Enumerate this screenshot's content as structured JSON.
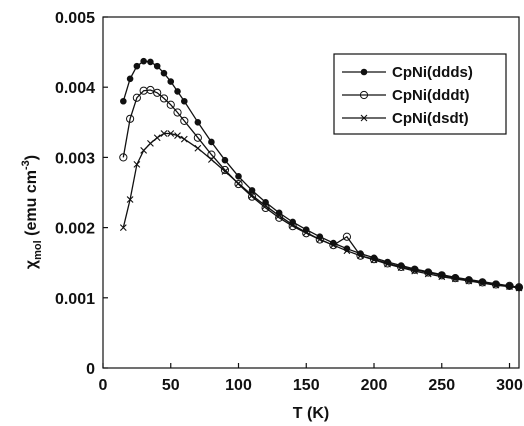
{
  "chart_data": {
    "type": "scatter",
    "xlabel": "T (K)",
    "ylabel": {
      "symbol": "χ",
      "sub": "mol",
      "text": " (emu cm",
      "sup": "-3",
      "close": ")"
    },
    "xlim": [
      0,
      307
    ],
    "ylim": [
      0,
      0.005
    ],
    "x_ticks": [
      "0",
      "50",
      "100",
      "150",
      "200",
      "250",
      "300"
    ],
    "y_ticks": [
      "0",
      "0.001",
      "0.002",
      "0.003",
      "0.004",
      "0.005"
    ],
    "grid": false,
    "legend_position": "top-right",
    "series": [
      {
        "name": "CpNi(ddds)",
        "marker": "filled-circle",
        "x": [
          15,
          20,
          25,
          30,
          35,
          40,
          45,
          50,
          55,
          60,
          70,
          80,
          90,
          100,
          110,
          120,
          130,
          140,
          150,
          160,
          170,
          180,
          190,
          200,
          210,
          220,
          230,
          240,
          250,
          260,
          270,
          280,
          290,
          300,
          307
        ],
        "y": [
          0.0038,
          0.00412,
          0.0043,
          0.00437,
          0.00436,
          0.0043,
          0.0042,
          0.00408,
          0.00394,
          0.0038,
          0.0035,
          0.00322,
          0.00296,
          0.00273,
          0.00253,
          0.00236,
          0.00221,
          0.00208,
          0.00197,
          0.00187,
          0.00178,
          0.0017,
          0.00163,
          0.00157,
          0.00151,
          0.00146,
          0.00141,
          0.00137,
          0.00133,
          0.00129,
          0.00126,
          0.00123,
          0.0012,
          0.00117,
          0.00115
        ]
      },
      {
        "name": "CpNi(dddt)",
        "marker": "open-circle",
        "x": [
          15,
          20,
          25,
          30,
          35,
          40,
          45,
          50,
          55,
          60,
          70,
          80,
          90,
          100,
          110,
          120,
          130,
          140,
          150,
          160,
          170,
          180,
          190,
          200,
          210,
          220,
          230,
          240,
          250,
          260,
          270,
          280,
          290,
          300,
          307
        ],
        "y": [
          0.003,
          0.00355,
          0.00385,
          0.00395,
          0.00396,
          0.00392,
          0.00384,
          0.00375,
          0.00364,
          0.00352,
          0.00328,
          0.00304,
          0.00282,
          0.00262,
          0.00244,
          0.00228,
          0.00214,
          0.00202,
          0.00192,
          0.00183,
          0.00175,
          0.00187,
          0.0016,
          0.00155,
          0.00149,
          0.00144,
          0.0014,
          0.00136,
          0.00132,
          0.00128,
          0.00125,
          0.00122,
          0.00119,
          0.00117,
          0.00115
        ]
      },
      {
        "name": "CpNi(dsdt)",
        "marker": "cross",
        "x": [
          15,
          20,
          25,
          30,
          35,
          40,
          45,
          50,
          55,
          60,
          70,
          80,
          90,
          100,
          110,
          120,
          130,
          140,
          150,
          160,
          170,
          180,
          190,
          200,
          210,
          220,
          230,
          240,
          250,
          260,
          270,
          280,
          290,
          300,
          307
        ],
        "y": [
          0.002,
          0.0024,
          0.0029,
          0.0031,
          0.0032,
          0.00328,
          0.00334,
          0.00334,
          0.00331,
          0.00326,
          0.00313,
          0.00297,
          0.0028,
          0.00263,
          0.00246,
          0.00231,
          0.00217,
          0.00204,
          0.00193,
          0.00183,
          0.00175,
          0.00167,
          0.0016,
          0.00154,
          0.00148,
          0.00143,
          0.00138,
          0.00134,
          0.0013,
          0.00127,
          0.00124,
          0.00121,
          0.00118,
          0.00116,
          0.00114
        ]
      }
    ]
  }
}
